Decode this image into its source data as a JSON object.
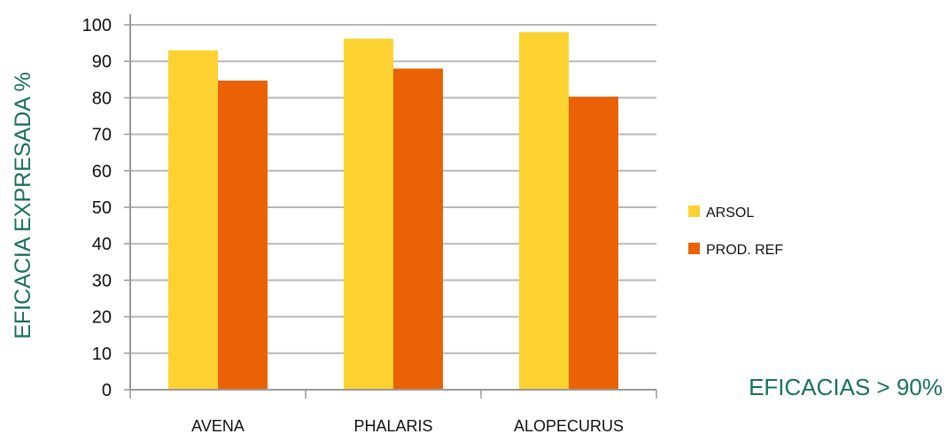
{
  "chart_data": {
    "type": "bar",
    "title": "",
    "xlabel": "",
    "ylabel": "EFICACIA EXPRESADA %",
    "annotation": "EFICACIAS > 90%",
    "ylim": [
      0,
      100
    ],
    "yticks": [
      0,
      10,
      20,
      30,
      40,
      50,
      60,
      70,
      80,
      90,
      100
    ],
    "grid": true,
    "legend_position": "right",
    "categories": [
      "AVENA",
      "PHALARIS",
      "ALOPECURUS"
    ],
    "series": [
      {
        "name": "ARSOL",
        "color": "#fdd230",
        "values": [
          93,
          96.2,
          98
        ]
      },
      {
        "name": "PROD. REF",
        "color": "#ea6205",
        "values": [
          84.7,
          88,
          80.3
        ]
      }
    ]
  }
}
